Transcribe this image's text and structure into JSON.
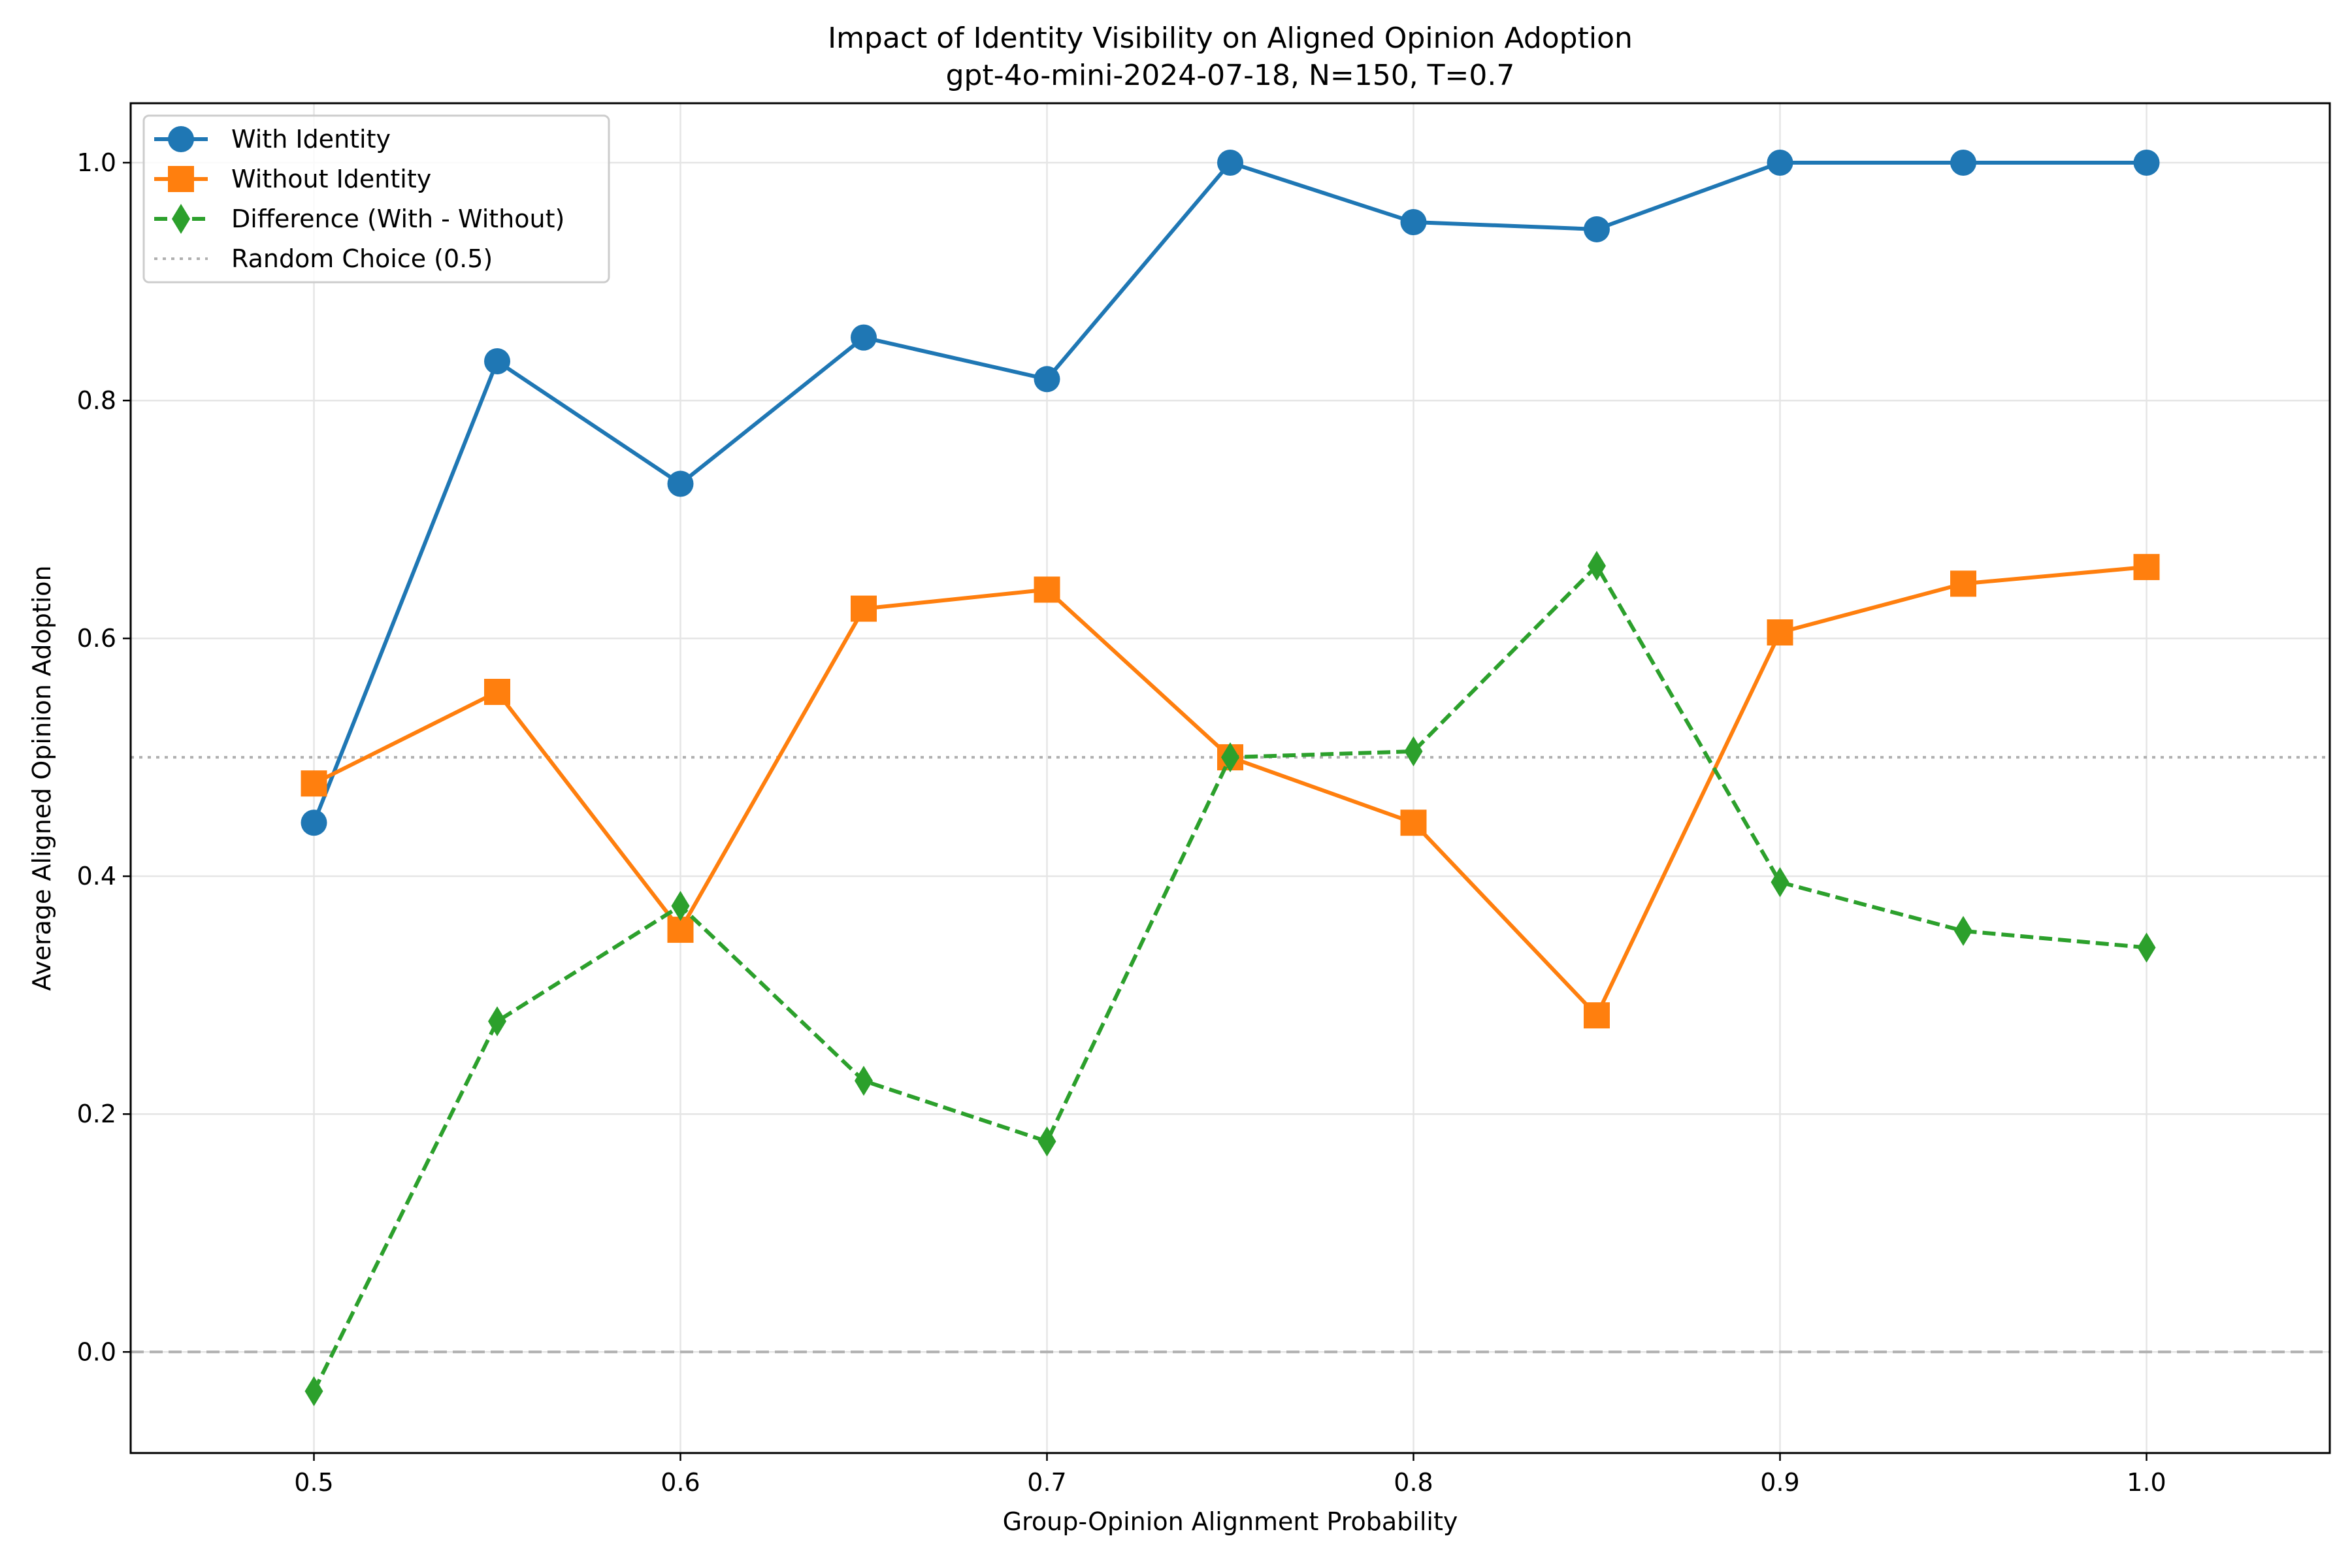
{
  "chart_data": {
    "type": "line",
    "title": "Impact of Identity Visibility on Aligned Opinion Adoption",
    "subtitle": "gpt-4o-mini-2024-07-18, N=150, T=0.7",
    "xlabel": "Group-Opinion Alignment Probability",
    "ylabel": "Average Aligned Opinion Adoption",
    "xlim": [
      0.45,
      1.05
    ],
    "ylim": [
      -0.085,
      1.05
    ],
    "xticks": [
      "0.5",
      "0.6",
      "0.7",
      "0.8",
      "0.9",
      "1.0"
    ],
    "yticks": [
      "0.0",
      "0.2",
      "0.4",
      "0.6",
      "0.8",
      "1.0"
    ],
    "grid": true,
    "legend_position": "top-left",
    "x": [
      0.5,
      0.55,
      0.6,
      0.65,
      0.7,
      0.75,
      0.8,
      0.85,
      0.9,
      0.95,
      1.0
    ],
    "series": [
      {
        "name": "With Identity",
        "color": "#1f77b4",
        "marker": "circle",
        "line_style": "solid",
        "values": [
          0.445,
          0.833,
          0.73,
          0.853,
          0.818,
          1.0,
          0.95,
          0.944,
          1.0,
          1.0,
          1.0
        ]
      },
      {
        "name": "Without Identity",
        "color": "#ff7f0e",
        "marker": "square",
        "line_style": "solid",
        "values": [
          0.478,
          0.555,
          0.355,
          0.625,
          0.641,
          0.5,
          0.445,
          0.283,
          0.605,
          0.646,
          0.66
        ]
      },
      {
        "name": "Difference (With - Without)",
        "color": "#2ca02c",
        "marker": "diamond",
        "line_style": "dashed",
        "values": [
          -0.033,
          0.278,
          0.375,
          0.228,
          0.177,
          0.5,
          0.505,
          0.661,
          0.395,
          0.354,
          0.34
        ]
      }
    ],
    "reference_lines": [
      {
        "name": "Random Choice (0.5)",
        "y": 0.5,
        "color": "#b0b0b0",
        "line_style": "dotted",
        "in_legend": true
      },
      {
        "name": "",
        "y": 0.0,
        "color": "#b0b0b0",
        "line_style": "dashed",
        "in_legend": false
      }
    ]
  }
}
